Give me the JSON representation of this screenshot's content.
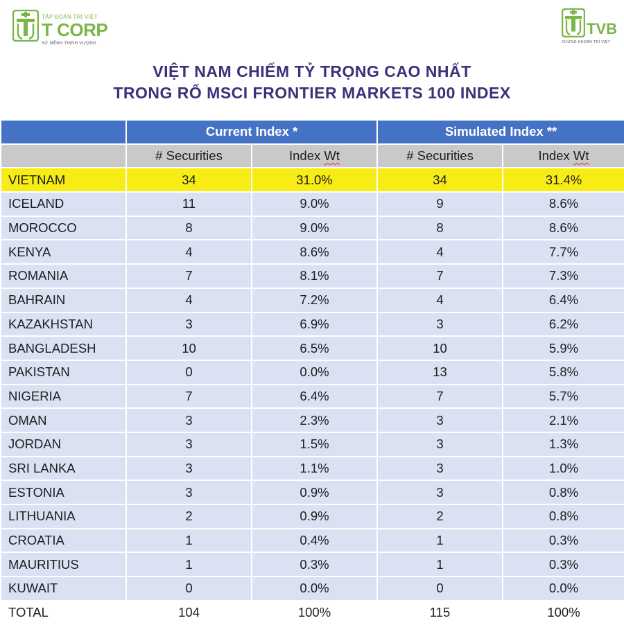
{
  "logos": {
    "left": {
      "small_top": "TẬP ĐOÀN TRÍ VIỆT",
      "brand": "T CORP",
      "tagline": "SỨ MỆNH THỊNH VƯỢNG",
      "color": "#7ab648"
    },
    "right": {
      "brand": "TVB",
      "tagline": "CHỨNG KHOÁN TRÍ VIỆT",
      "color": "#7ab648"
    }
  },
  "title": {
    "line1": "VIỆT NAM CHIẾM TỶ TRỌNG CAO NHẤT",
    "line2": "TRONG RỔ MSCI FRONTIER MARKETS 100 INDEX",
    "color": "#3f2f7a"
  },
  "table": {
    "group_headers": [
      "Current Index *",
      "Simulated Index **"
    ],
    "sub_headers": [
      "# Securities",
      "Index Wt",
      "# Securities",
      "Index Wt"
    ],
    "rows": [
      {
        "country": "VIETNAM",
        "cur_sec": "34",
        "cur_wt": "31.0%",
        "sim_sec": "34",
        "sim_wt": "31.4%"
      },
      {
        "country": "ICELAND",
        "cur_sec": "11",
        "cur_wt": "9.0%",
        "sim_sec": "9",
        "sim_wt": "8.6%"
      },
      {
        "country": "MOROCCO",
        "cur_sec": "8",
        "cur_wt": "9.0%",
        "sim_sec": "8",
        "sim_wt": "8.6%"
      },
      {
        "country": "KENYA",
        "cur_sec": "4",
        "cur_wt": "8.6%",
        "sim_sec": "4",
        "sim_wt": "7.7%"
      },
      {
        "country": "ROMANIA",
        "cur_sec": "7",
        "cur_wt": "8.1%",
        "sim_sec": "7",
        "sim_wt": "7.3%"
      },
      {
        "country": "BAHRAIN",
        "cur_sec": "4",
        "cur_wt": "7.2%",
        "sim_sec": "4",
        "sim_wt": "6.4%"
      },
      {
        "country": "KAZAKHSTAN",
        "cur_sec": "3",
        "cur_wt": "6.9%",
        "sim_sec": "3",
        "sim_wt": "6.2%"
      },
      {
        "country": "BANGLADESH",
        "cur_sec": "10",
        "cur_wt": "6.5%",
        "sim_sec": "10",
        "sim_wt": "5.9%"
      },
      {
        "country": "PAKISTAN",
        "cur_sec": "0",
        "cur_wt": "0.0%",
        "sim_sec": "13",
        "sim_wt": "5.8%"
      },
      {
        "country": "NIGERIA",
        "cur_sec": "7",
        "cur_wt": "6.4%",
        "sim_sec": "7",
        "sim_wt": "5.7%"
      },
      {
        "country": "OMAN",
        "cur_sec": "3",
        "cur_wt": "2.3%",
        "sim_sec": "3",
        "sim_wt": "2.1%"
      },
      {
        "country": "JORDAN",
        "cur_sec": "3",
        "cur_wt": "1.5%",
        "sim_sec": "3",
        "sim_wt": "1.3%"
      },
      {
        "country": "SRI LANKA",
        "cur_sec": "3",
        "cur_wt": "1.1%",
        "sim_sec": "3",
        "sim_wt": "1.0%"
      },
      {
        "country": "ESTONIA",
        "cur_sec": "3",
        "cur_wt": "0.9%",
        "sim_sec": "3",
        "sim_wt": "0.8%"
      },
      {
        "country": "LITHUANIA",
        "cur_sec": "2",
        "cur_wt": "0.9%",
        "sim_sec": "2",
        "sim_wt": "0.8%"
      },
      {
        "country": "CROATIA",
        "cur_sec": "1",
        "cur_wt": "0.4%",
        "sim_sec": "1",
        "sim_wt": "0.3%"
      },
      {
        "country": "MAURITIUS",
        "cur_sec": "1",
        "cur_wt": "0.3%",
        "sim_sec": "1",
        "sim_wt": "0.3%"
      },
      {
        "country": "KUWAIT",
        "cur_sec": "0",
        "cur_wt": "0.0%",
        "sim_sec": "0",
        "sim_wt": "0.0%"
      },
      {
        "country": "TOTAL",
        "cur_sec": "104",
        "cur_wt": "100%",
        "sim_sec": "115",
        "sim_wt": "100%"
      }
    ],
    "highlight_country": "VIETNAM",
    "colors": {
      "header": "#4472c4",
      "subheader": "#c9c9c9",
      "row": "#d9e1f2",
      "highlight": "#f7ec14"
    }
  }
}
